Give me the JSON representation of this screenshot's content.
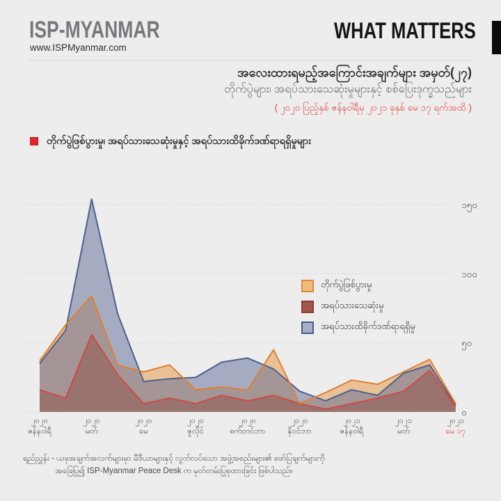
{
  "header": {
    "logo": "ISP-MYANMAR",
    "website": "www.ISPMyanmar.com",
    "brand": "WHAT MATTERS"
  },
  "title": {
    "line1": "အလေးထားရမည့်အကြောင်းအချက်များ အမှတ်(၂၇)",
    "line2": "တိုက်ပွဲများ၊ အရပ်သားသေဆုံးမှုများနှင့် စစ်ပြေးဒုက္ခသည်များ",
    "date_range": "( ၂၀၂၀ ပြည့်နှစ် ဇန်နဝါရီမှ ၂၀၂၁ ခုနှစ် မေ ၁၇ ရက်အထိ )"
  },
  "section_title": "တိုက်ပွဲဖြစ်ပွားမှု၊ အရပ်သားသေဆုံးမှုနှင့် အရပ်သားထိခိုက်ဒဏ်ရာရရှိမှုများ",
  "footer": {
    "line1": "ရည်ညွှန်း - ယခုအချက်အလက်များမှာ မီဒီယာများနှင့် လွတ်လပ်သော အဖွဲ့အစည်းများ၏ ဖော်ပြချက်များကို",
    "line2": "အခြေပြု၍ ISP-Myanmar Peace Desk က မှတ်တမ်းပြုစုထားခြင်း ဖြစ်ပါသည်။"
  },
  "colors": {
    "background": "#EDEDED",
    "accent_red": "#E4262C",
    "highlight_text_red": "#D0453E",
    "grid": "#CCCCCC",
    "tick_text": "#4a4a4a"
  },
  "chart_data": {
    "type": "area",
    "title": "တိုက်ပွဲဖြစ်ပွားမှု၊ အရပ်သားသေဆုံးမှုနှင့် အရပ်သားထိခိုက်ဒဏ်ရာရရှိမှုများ",
    "categories": [
      "2020-01",
      "2020-02",
      "2020-03",
      "2020-04",
      "2020-05",
      "2020-06",
      "2020-07",
      "2020-08",
      "2020-09",
      "2020-10",
      "2020-11",
      "2020-12",
      "2021-01",
      "2021-02",
      "2021-03",
      "2021-04",
      "2021-05-17"
    ],
    "series": [
      {
        "name": "တိုက်ပွဲဖြစ်ပွားမှု",
        "values": [
          37,
          63,
          84,
          34,
          29,
          34,
          16,
          18,
          16,
          45,
          6,
          14,
          23,
          20,
          29,
          38,
          6
        ],
        "line_color": "#E08030",
        "fill_color": "rgba(232,150,64,0.50)",
        "legend_fill": "#F1BC7D",
        "legend_border": "#DF8638"
      },
      {
        "name": "အရပ်သားသေဆုံးမှု",
        "values": [
          16,
          10,
          56,
          27,
          6,
          10,
          6,
          12,
          8,
          12,
          6,
          2,
          6,
          10,
          15,
          30,
          4
        ],
        "line_color": "#CE4A44",
        "fill_color": "rgba(143,74,62,0.45)",
        "legend_fill": "#A1574C",
        "legend_border": "#8E3B32"
      },
      {
        "name": "အရပ်သားထိခိုက်ဒဏ်ရာရရှိမှု",
        "values": [
          35,
          59,
          154,
          71,
          22,
          24,
          25,
          36,
          39,
          31,
          15,
          8,
          16,
          12,
          28,
          34,
          5
        ],
        "line_color": "#4E5F8C",
        "fill_color": "rgba(93,108,152,0.50)",
        "legend_fill": "#A6AFCA",
        "legend_border": "#49597F"
      }
    ],
    "y_ticks": [
      {
        "label": "၁၅၀",
        "value": 150
      },
      {
        "label": "၁၀၀",
        "value": 100
      },
      {
        "label": "၅၀",
        "value": 50
      },
      {
        "label": "၀",
        "value": 0
      }
    ],
    "x_tick_labels": [
      {
        "year": "၂၀၂၀",
        "month": "ဇန်နဝါရီ",
        "highlight": false
      },
      {
        "year": "၂၀၂၀",
        "month": "မတ်",
        "highlight": false
      },
      {
        "year": "၂၀၂၀",
        "month": "မေ",
        "highlight": false
      },
      {
        "year": "၂၀၂၀",
        "month": "ဇူလိုင်",
        "highlight": false
      },
      {
        "year": "၂၀၂၀",
        "month": "စက်တင်ဘာ",
        "highlight": false
      },
      {
        "year": "၂၀၂၀",
        "month": "နိုဝင်ဘာ",
        "highlight": false
      },
      {
        "year": "၂၀၂၁",
        "month": "ဇန်နဝါရီ",
        "highlight": false
      },
      {
        "year": "၂၀၂၁",
        "month": "မတ်",
        "highlight": false
      },
      {
        "year": "၂၀၂၁",
        "month": "မေ ၁၇",
        "highlight": true
      }
    ],
    "ylim": [
      0,
      160
    ],
    "grid": "dotted",
    "legend_position": "inside-right"
  }
}
